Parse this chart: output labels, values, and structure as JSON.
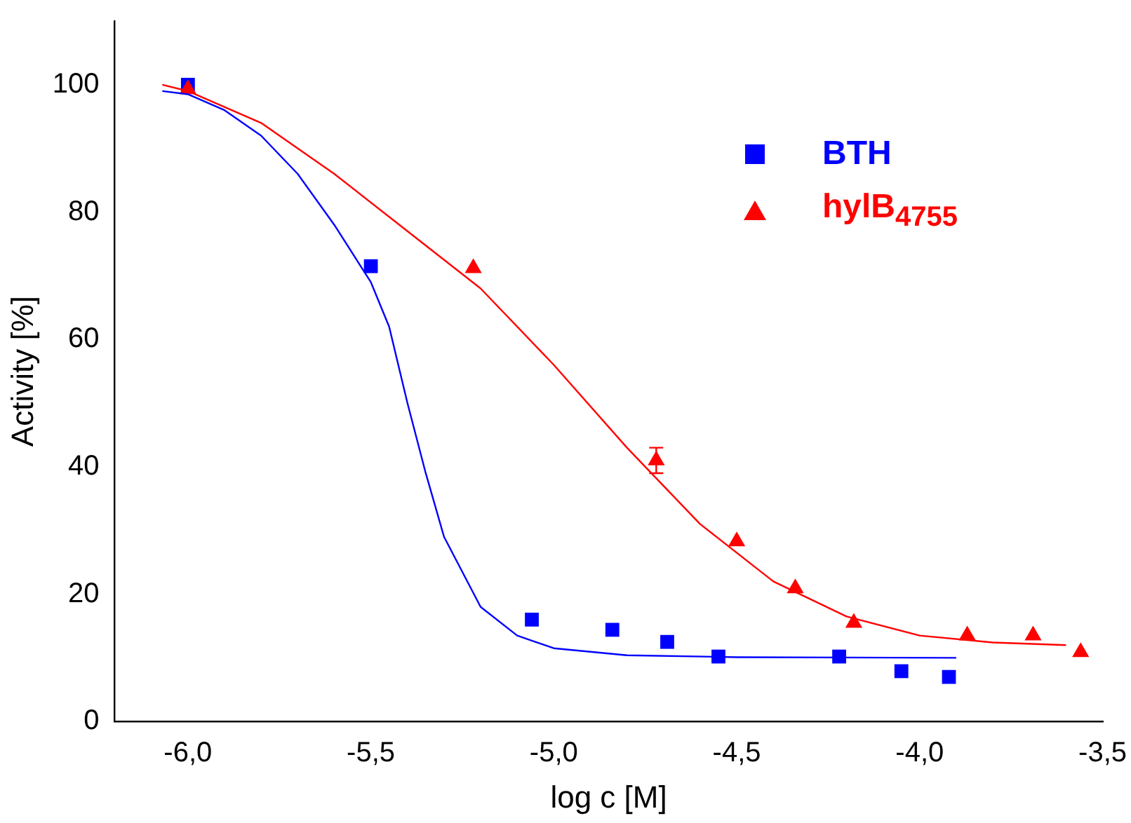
{
  "chart_data": {
    "type": "scatter",
    "xlabel": "log c [M]",
    "ylabel": "Activity [%]",
    "xlim": [
      -6.2,
      -3.5
    ],
    "ylim": [
      0,
      110
    ],
    "xticks": [
      {
        "value": -6,
        "label": "-6,0"
      },
      {
        "value": -5.5,
        "label": "-5,5"
      },
      {
        "value": -5,
        "label": "-5,0"
      },
      {
        "value": -4.5,
        "label": "-4,5"
      },
      {
        "value": -4,
        "label": "-4,0"
      },
      {
        "value": -3.5,
        "label": "-3,5"
      }
    ],
    "yticks": [
      0,
      20,
      40,
      60,
      80,
      100
    ],
    "grid": false,
    "legend": "top right",
    "series": [
      {
        "name": "BTH",
        "marker": "square",
        "color": "#0000ff",
        "x": [
          -6.0,
          -5.5,
          -5.06,
          -4.84,
          -4.69,
          -4.55,
          -4.22,
          -4.05,
          -3.92
        ],
        "values": [
          100,
          71.5,
          16,
          14.4,
          12.5,
          10.2,
          10.2,
          7.9,
          7.0
        ]
      },
      {
        "name": "hylB$_{4755}$",
        "marker": "triangle",
        "color": "#ff0000",
        "x": [
          -6.0,
          -5.22,
          -4.72,
          -4.5,
          -4.34,
          -4.18,
          -3.87,
          -3.69,
          -3.56
        ],
        "values": [
          99.3,
          71.2,
          41,
          28.3,
          20.9,
          15.5,
          13.5,
          13.5,
          10.9
        ],
        "errors": [
          null,
          null,
          2,
          null,
          null,
          null,
          null,
          null,
          null
        ]
      },
      {
        "type": "line",
        "marker": "none",
        "color": "#0000ff",
        "x": [
          -6.07,
          -6.0,
          -5.9,
          -5.8,
          -5.7,
          -5.6,
          -5.5,
          -5.45,
          -5.4,
          -5.35,
          -5.3,
          -5.2,
          -5.1,
          -5.0,
          -4.8,
          -4.5,
          -3.9
        ],
        "values": [
          99,
          98.5,
          96,
          92,
          86,
          78,
          69,
          62,
          50,
          39,
          29,
          18,
          13.5,
          11.5,
          10.4,
          10.1,
          10
        ]
      },
      {
        "type": "line",
        "marker": "none",
        "color": "#ff0000",
        "x": [
          -6.07,
          -6.0,
          -5.8,
          -5.6,
          -5.4,
          -5.2,
          -5.0,
          -4.8,
          -4.6,
          -4.4,
          -4.2,
          -4.0,
          -3.8,
          -3.6
        ],
        "values": [
          100,
          99,
          94,
          86,
          77,
          68,
          56,
          43,
          31,
          22,
          16.5,
          13.5,
          12.4,
          12
        ]
      }
    ]
  }
}
